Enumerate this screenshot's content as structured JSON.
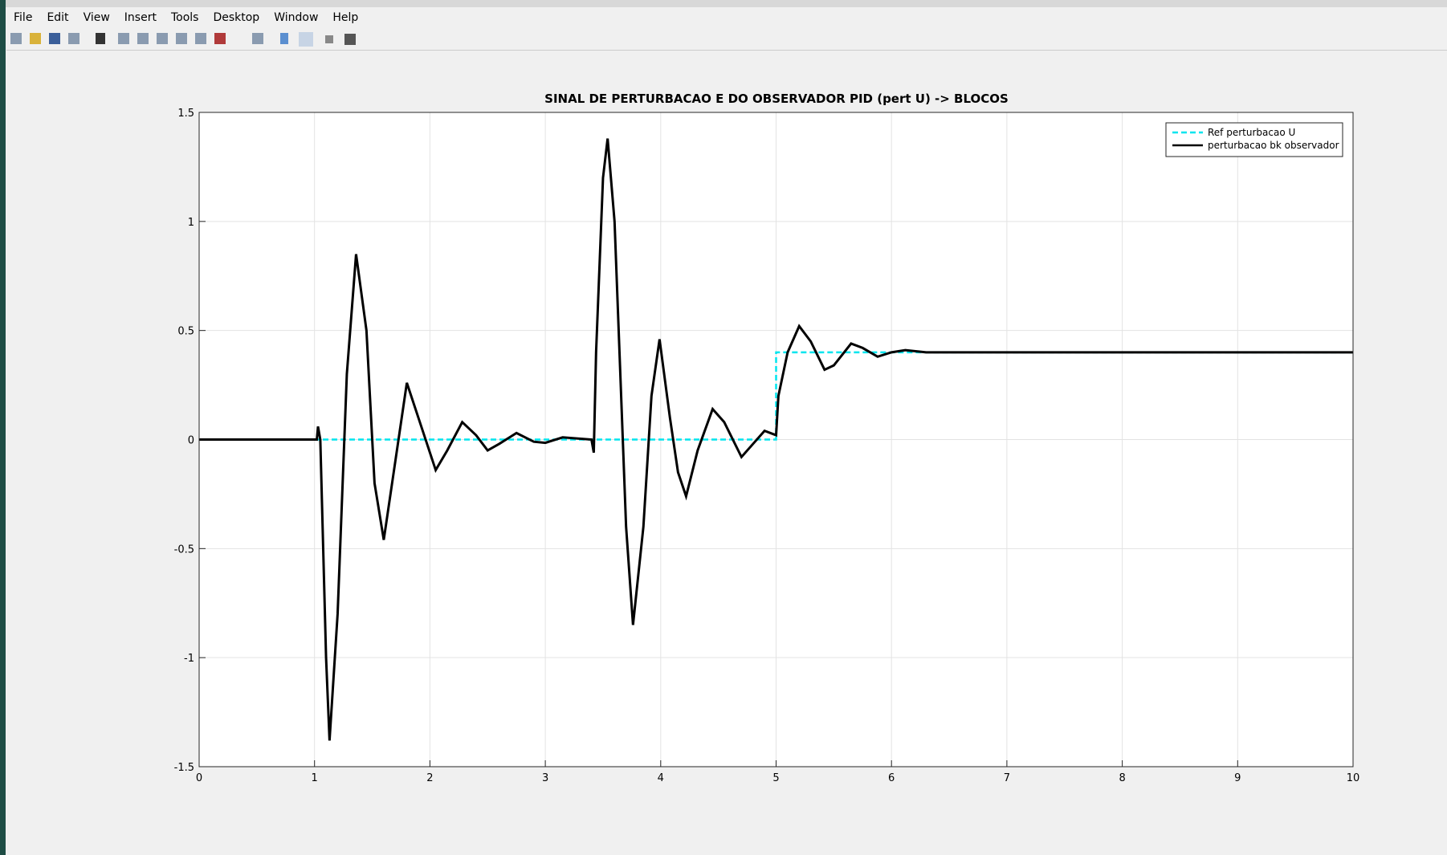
{
  "menu": {
    "items": [
      "File",
      "Edit",
      "View",
      "Insert",
      "Tools",
      "Desktop",
      "Window",
      "Help"
    ]
  },
  "chart_data": {
    "type": "line",
    "title": "SINAL DE PERTURBACAO E DO OBSERVADOR  PID (pert U) -> BLOCOS",
    "xlim": [
      0,
      10
    ],
    "ylim": [
      -1.5,
      1.5
    ],
    "xticks": [
      0,
      1,
      2,
      3,
      4,
      5,
      6,
      7,
      8,
      9,
      10
    ],
    "yticks": [
      -1.5,
      -1,
      -0.5,
      0,
      0.5,
      1,
      1.5
    ],
    "grid": true,
    "legend": "northeast",
    "series": [
      {
        "name": "Ref perturbacao U",
        "color": "#00e5ee",
        "linestyle": "dashed",
        "x": [
          0,
          5,
          5,
          10
        ],
        "values": [
          0,
          0,
          0.4,
          0.4
        ]
      },
      {
        "name": "perturbacao bk observador",
        "color": "#000000",
        "linestyle": "solid",
        "x": [
          0,
          1.02,
          1.03,
          1.05,
          1.1,
          1.13,
          1.2,
          1.28,
          1.36,
          1.45,
          1.52,
          1.6,
          1.7,
          1.8,
          1.9,
          2.05,
          2.15,
          2.28,
          2.4,
          2.5,
          2.6,
          2.75,
          2.9,
          3.0,
          3.15,
          3.4,
          3.42,
          3.44,
          3.5,
          3.54,
          3.6,
          3.7,
          3.76,
          3.85,
          3.92,
          3.99,
          4.08,
          4.15,
          4.22,
          4.32,
          4.45,
          4.55,
          4.7,
          4.8,
          4.9,
          5.0,
          5.02,
          5.1,
          5.2,
          5.3,
          5.42,
          5.5,
          5.65,
          5.75,
          5.88,
          6.0,
          6.12,
          6.3,
          7,
          8,
          9,
          10
        ],
        "values": [
          0,
          0,
          0.06,
          0,
          -1.0,
          -1.38,
          -0.8,
          0.3,
          0.85,
          0.5,
          -0.2,
          -0.46,
          -0.1,
          0.26,
          0.1,
          -0.14,
          -0.05,
          0.08,
          0.02,
          -0.05,
          -0.02,
          0.03,
          -0.01,
          -0.015,
          0.01,
          0,
          -0.06,
          0.4,
          1.2,
          1.38,
          1.0,
          -0.4,
          -0.85,
          -0.4,
          0.2,
          0.46,
          0.1,
          -0.15,
          -0.26,
          -0.05,
          0.14,
          0.08,
          -0.08,
          -0.02,
          0.04,
          0.02,
          0.2,
          0.4,
          0.52,
          0.45,
          0.32,
          0.34,
          0.44,
          0.42,
          0.38,
          0.4,
          0.41,
          0.4,
          0.4,
          0.4,
          0.4,
          0.4
        ]
      }
    ]
  }
}
